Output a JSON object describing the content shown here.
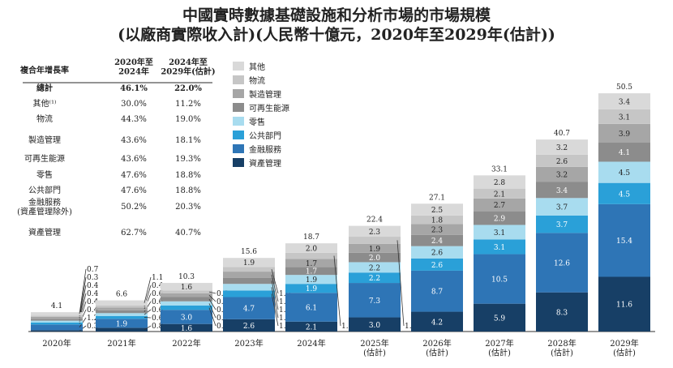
{
  "title": "中國實時數據基礎設施和分析市場的市場規模",
  "subtitle": "(以廠商實際收入計)(人民幣十億元，2020年至2029年(估計))",
  "table": {
    "header": [
      "複合年增長率",
      "2020年至\n2024年",
      "2024年至\n2029年(估計)"
    ],
    "rows": [
      {
        "label": "總計",
        "c1": "46.1%",
        "c2": "22.0%",
        "bold": true
      },
      {
        "label": "其他⁽¹⁾",
        "c1": "30.0%",
        "c2": "11.2%"
      },
      {
        "label": "物流",
        "c1": "44.3%",
        "c2": "19.0%"
      },
      {
        "label": "製造管理",
        "c1": "43.6%",
        "c2": "18.1%"
      },
      {
        "label": "可再生能源",
        "c1": "43.6%",
        "c2": "19.3%"
      },
      {
        "label": "零售",
        "c1": "47.6%",
        "c2": "18.8%"
      },
      {
        "label": "公共部門",
        "c1": "47.6%",
        "c2": "18.8%"
      },
      {
        "label": "金融服務\n(資產管理除外)",
        "c1": "50.2%",
        "c2": "20.3%"
      },
      {
        "label": "資產管理",
        "c1": "62.7%",
        "c2": "40.7%"
      }
    ]
  },
  "chart_data": {
    "type": "bar",
    "stacked": true,
    "legend": "top-left",
    "grid": false,
    "categories": [
      "2020年",
      "2021年",
      "2022年",
      "2023年",
      "2024年",
      "2025年\n(估計)",
      "2026年\n(估計)",
      "2027年\n(估計)",
      "2028年\n(估計)",
      "2029年\n(估計)"
    ],
    "totals": [
      4.1,
      6.6,
      10.3,
      15.6,
      18.7,
      22.4,
      27.1,
      33.1,
      40.7,
      50.5
    ],
    "series": [
      {
        "name": "資產管理",
        "color": "#173f66",
        "values": [
          0.3,
          0.8,
          1.6,
          2.6,
          2.1,
          3.0,
          4.2,
          5.9,
          8.3,
          11.6
        ]
      },
      {
        "name": "金融服務",
        "color": "#2e75b6",
        "values": [
          1.2,
          1.9,
          3.0,
          4.7,
          6.1,
          7.3,
          8.7,
          10.5,
          12.6,
          15.4
        ]
      },
      {
        "name": "公共部門",
        "color": "#2aa0d8",
        "values": [
          0.4,
          0.6,
          0.9,
          1.4,
          1.9,
          2.2,
          2.6,
          3.1,
          3.7,
          4.5
        ]
      },
      {
        "name": "零售",
        "color": "#a8dcef",
        "values": [
          0.4,
          0.6,
          0.9,
          1.4,
          1.9,
          2.2,
          2.6,
          3.1,
          3.7,
          4.5
        ]
      },
      {
        "name": "可再生能源",
        "color": "#8c8c8c",
        "values": [
          0.4,
          0.6,
          0.9,
          1.3,
          1.7,
          2.0,
          2.4,
          2.9,
          3.4,
          4.1
        ]
      },
      {
        "name": "製造管理",
        "color": "#a6a6a6",
        "values": [
          0.4,
          0.6,
          0.8,
          1.3,
          1.7,
          1.9,
          2.3,
          2.7,
          3.2,
          3.9
        ]
      },
      {
        "name": "物流",
        "color": "#c6c6c6",
        "values": [
          0.3,
          0.4,
          0.6,
          1.0,
          1.3,
          1.5,
          1.8,
          2.1,
          2.6,
          3.1
        ]
      },
      {
        "name": "其他",
        "color": "#d9d9d9",
        "values": [
          0.7,
          1.1,
          1.6,
          1.9,
          2.0,
          2.3,
          2.5,
          2.8,
          3.2,
          3.4
        ]
      }
    ]
  }
}
